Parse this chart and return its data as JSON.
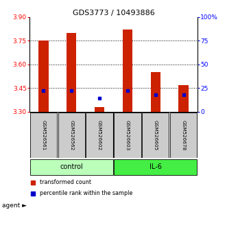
{
  "title": "GDS3773 / 10493886",
  "samples": [
    "GSM526561",
    "GSM526562",
    "GSM526602",
    "GSM526603",
    "GSM526605",
    "GSM526678"
  ],
  "bar_bottoms": [
    3.3,
    3.3,
    3.3,
    3.3,
    3.3,
    3.3
  ],
  "bar_tops": [
    3.75,
    3.8,
    3.33,
    3.82,
    3.55,
    3.47
  ],
  "percentile_values": [
    3.435,
    3.435,
    3.385,
    3.435,
    3.41,
    3.41
  ],
  "ylim": [
    3.3,
    3.9
  ],
  "yticks_left": [
    3.3,
    3.45,
    3.6,
    3.75,
    3.9
  ],
  "yticks_right": [
    0,
    25,
    50,
    75,
    100
  ],
  "ytick_right_labels": [
    "0",
    "25",
    "50",
    "75",
    "100%"
  ],
  "groups": [
    {
      "label": "control",
      "indices": [
        0,
        1,
        2
      ],
      "color": "#bbffbb"
    },
    {
      "label": "IL-6",
      "indices": [
        3,
        4,
        5
      ],
      "color": "#44ee44"
    }
  ],
  "bar_color": "#cc2200",
  "percentile_color": "#0000cc",
  "grid_color": "#000000",
  "background_color": "#ffffff",
  "sample_box_color": "#cccccc",
  "bar_width": 0.35
}
